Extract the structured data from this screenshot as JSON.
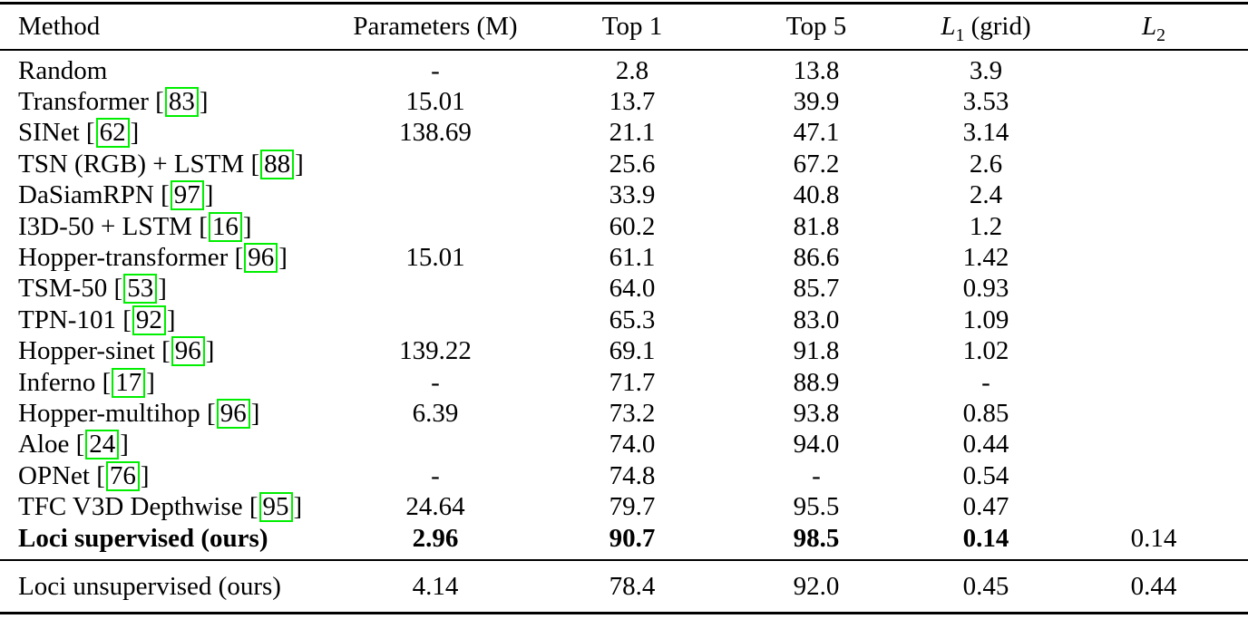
{
  "table": {
    "header": {
      "method": "Method",
      "parameters": "Parameters (M)",
      "top1": "Top 1",
      "top5": "Top 5",
      "l1": {
        "letter": "L",
        "sub": "1",
        "suffix": " (grid)"
      },
      "l2": {
        "letter": "L",
        "sub": "2"
      }
    },
    "cite_open": " [",
    "cite_close": "]",
    "colors": {
      "citation_box": "#00ee00",
      "text": "#000000",
      "background": "#ffffff"
    },
    "rows": [
      {
        "method": "Random",
        "cite": null,
        "params": "-",
        "top1": "2.8",
        "top5": "13.8",
        "l1": "3.9",
        "l2": "",
        "bold": false
      },
      {
        "method": "Transformer",
        "cite": "83",
        "params": "15.01",
        "top1": "13.7",
        "top5": "39.9",
        "l1": "3.53",
        "l2": "",
        "bold": false
      },
      {
        "method": "SINet",
        "cite": "62",
        "params": "138.69",
        "top1": "21.1",
        "top5": "47.1",
        "l1": "3.14",
        "l2": "",
        "bold": false
      },
      {
        "method": "TSN (RGB) + LSTM",
        "cite": "88",
        "params": "",
        "top1": "25.6",
        "top5": "67.2",
        "l1": "2.6",
        "l2": "",
        "bold": false
      },
      {
        "method": "DaSiamRPN",
        "cite": "97",
        "params": "",
        "top1": "33.9",
        "top5": "40.8",
        "l1": "2.4",
        "l2": "",
        "bold": false
      },
      {
        "method": "I3D-50 + LSTM",
        "cite": "16",
        "params": "",
        "top1": "60.2",
        "top5": "81.8",
        "l1": "1.2",
        "l2": "",
        "bold": false
      },
      {
        "method": "Hopper-transformer",
        "cite": "96",
        "params": "15.01",
        "top1": "61.1",
        "top5": "86.6",
        "l1": "1.42",
        "l2": "",
        "bold": false
      },
      {
        "method": "TSM-50",
        "cite": "53",
        "params": "",
        "top1": "64.0",
        "top5": "85.7",
        "l1": "0.93",
        "l2": "",
        "bold": false
      },
      {
        "method": "TPN-101",
        "cite": "92",
        "params": "",
        "top1": "65.3",
        "top5": "83.0",
        "l1": "1.09",
        "l2": "",
        "bold": false
      },
      {
        "method": "Hopper-sinet",
        "cite": "96",
        "params": "139.22",
        "top1": "69.1",
        "top5": "91.8",
        "l1": "1.02",
        "l2": "",
        "bold": false
      },
      {
        "method": "Inferno",
        "cite": "17",
        "params": "-",
        "top1": "71.7",
        "top5": "88.9",
        "l1": "-",
        "l2": "",
        "bold": false
      },
      {
        "method": "Hopper-multihop",
        "cite": "96",
        "params": "6.39",
        "top1": "73.2",
        "top5": "93.8",
        "l1": "0.85",
        "l2": "",
        "bold": false
      },
      {
        "method": "Aloe",
        "cite": "24",
        "params": "",
        "top1": "74.0",
        "top5": "94.0",
        "l1": "0.44",
        "l2": "",
        "bold": false
      },
      {
        "method": "OPNet",
        "cite": "76",
        "params": "-",
        "top1": "74.8",
        "top5": "-",
        "l1": "0.54",
        "l2": "",
        "bold": false
      },
      {
        "method": "TFC V3D Depthwise",
        "cite": "95",
        "params": "24.64",
        "top1": "79.7",
        "top5": "95.5",
        "l1": "0.47",
        "l2": "",
        "bold": false
      },
      {
        "method": "Loci supervised (ours)",
        "cite": null,
        "params": "2.96",
        "top1": "90.7",
        "top5": "98.5",
        "l1": "0.14",
        "l2": "0.14",
        "bold": true
      }
    ],
    "footer_rows": [
      {
        "method": "Loci unsupervised (ours)",
        "cite": null,
        "params": "4.14",
        "top1": "78.4",
        "top5": "92.0",
        "l1": "0.45",
        "l2": "0.44",
        "bold": false
      }
    ]
  }
}
